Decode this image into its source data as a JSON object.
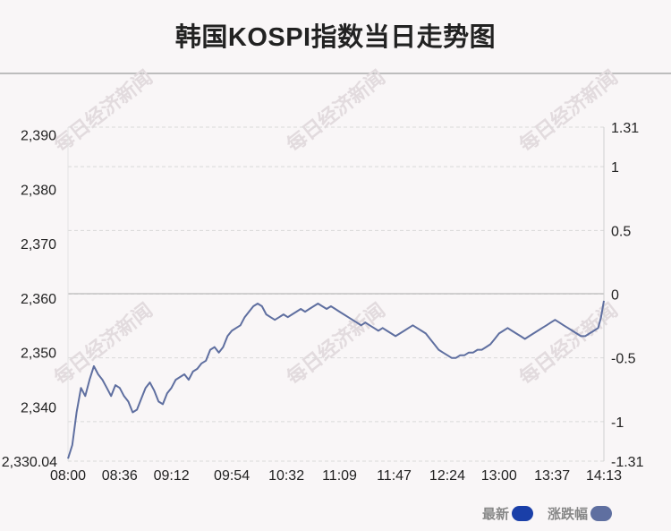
{
  "title": "韩国KOSPI指数当日走势图",
  "watermark": "每日经济新闻",
  "legend": [
    {
      "label": "最新",
      "color": "#1a3fa8"
    },
    {
      "label": "涨跌幅",
      "color": "#5f6fa0"
    }
  ],
  "chart_data": {
    "type": "line",
    "x_ticks": [
      "08:00",
      "08:36",
      "09:12",
      "09:54",
      "10:32",
      "11:09",
      "11:47",
      "12:24",
      "13:00",
      "13:37",
      "14:13"
    ],
    "y_left": {
      "ticks": [
        2330.04,
        2340,
        2350,
        2360,
        2370,
        2380,
        2390
      ],
      "tick_labels": [
        "2,330.04",
        "2,340",
        "2,350",
        "2,360",
        "2,370",
        "2,380",
        "2,390"
      ],
      "range": [
        2330.04,
        2391.4
      ]
    },
    "y_right": {
      "ticks": [
        -1.31,
        -1,
        -0.5,
        0,
        0.5,
        1,
        1.31
      ],
      "tick_labels": [
        "-1.31",
        "-1",
        "-0.5",
        "0",
        "0.5",
        "1",
        "1.31"
      ],
      "range": [
        -1.31,
        1.31
      ]
    },
    "reference_line_value": 2360.8,
    "grid": "horizontal dashed",
    "legend_position": "bottom-right",
    "line_color": "#5f6fa0",
    "series": [
      {
        "x": [
          "08:00",
          "08:03",
          "08:06",
          "08:09",
          "08:12",
          "08:15",
          "08:18",
          "08:21",
          "08:24",
          "08:27",
          "08:30",
          "08:33",
          "08:36",
          "08:39",
          "08:42",
          "08:45",
          "08:48",
          "08:51",
          "08:54",
          "08:57",
          "09:00",
          "09:03",
          "09:06",
          "09:09",
          "09:12",
          "09:15",
          "09:18",
          "09:21",
          "09:24",
          "09:27",
          "09:30",
          "09:33",
          "09:36",
          "09:39",
          "09:42",
          "09:45",
          "09:48",
          "09:51",
          "09:54",
          "09:57",
          "10:00",
          "10:03",
          "10:06",
          "10:09",
          "10:12",
          "10:15",
          "10:18",
          "10:21",
          "10:24",
          "10:27",
          "10:30",
          "10:33",
          "10:36",
          "10:39",
          "10:42",
          "10:45",
          "10:48",
          "10:51",
          "10:54",
          "10:57",
          "11:00",
          "11:03",
          "11:06",
          "11:09",
          "11:12",
          "11:15",
          "11:18",
          "11:21",
          "11:24",
          "11:27",
          "11:30",
          "11:33",
          "11:36",
          "11:39",
          "11:42",
          "11:45",
          "11:48",
          "11:51",
          "11:54",
          "11:57",
          "12:00",
          "12:03",
          "12:06",
          "12:09",
          "12:12",
          "12:15",
          "12:18",
          "12:21",
          "12:24",
          "12:27",
          "12:30",
          "12:33",
          "12:36",
          "12:39",
          "12:42",
          "12:45",
          "12:48",
          "12:51",
          "12:54",
          "12:57",
          "13:00",
          "13:03",
          "13:06",
          "13:09",
          "13:12",
          "13:15",
          "13:18",
          "13:21",
          "13:24",
          "13:27",
          "13:30",
          "13:33",
          "13:36",
          "13:39",
          "13:42",
          "13:45",
          "13:48",
          "13:51",
          "13:54",
          "13:57",
          "14:00",
          "14:03",
          "14:06",
          "14:09",
          "14:11",
          "14:13"
        ],
        "values": [
          2330.5,
          2333.0,
          2339.0,
          2343.5,
          2342.0,
          2345.0,
          2347.5,
          2346.0,
          2345.0,
          2343.5,
          2342.0,
          2344.0,
          2343.5,
          2342.0,
          2341.0,
          2339.0,
          2339.5,
          2341.5,
          2343.5,
          2344.5,
          2343.0,
          2341.0,
          2340.5,
          2342.5,
          2343.5,
          2345.0,
          2345.5,
          2346.0,
          2345.0,
          2346.5,
          2347.0,
          2348.0,
          2348.5,
          2350.5,
          2351.0,
          2350.0,
          2351.0,
          2353.0,
          2354.0,
          2354.5,
          2355.0,
          2356.5,
          2357.5,
          2358.5,
          2359.0,
          2358.5,
          2357.0,
          2356.5,
          2356.0,
          2356.5,
          2357.0,
          2356.5,
          2357.0,
          2357.5,
          2358.0,
          2357.5,
          2358.0,
          2358.5,
          2359.0,
          2358.5,
          2358.0,
          2358.5,
          2358.0,
          2357.5,
          2357.0,
          2356.5,
          2356.0,
          2355.5,
          2355.0,
          2355.5,
          2355.0,
          2354.5,
          2354.0,
          2354.5,
          2354.0,
          2353.5,
          2353.0,
          2353.5,
          2354.0,
          2354.5,
          2355.0,
          2354.5,
          2354.0,
          2353.5,
          2352.5,
          2351.5,
          2350.5,
          2350.0,
          2349.5,
          2349.0,
          2349.0,
          2349.5,
          2349.5,
          2350.0,
          2350.0,
          2350.5,
          2350.5,
          2351.0,
          2351.5,
          2352.5,
          2353.5,
          2354.0,
          2354.5,
          2354.0,
          2353.5,
          2353.0,
          2352.5,
          2353.0,
          2353.5,
          2354.0,
          2354.5,
          2355.0,
          2355.5,
          2356.0,
          2355.5,
          2355.0,
          2354.5,
          2354.0,
          2353.5,
          2353.0,
          2353.0,
          2353.5,
          2354.0,
          2354.5,
          2356.5,
          2359.5
        ]
      }
    ]
  }
}
